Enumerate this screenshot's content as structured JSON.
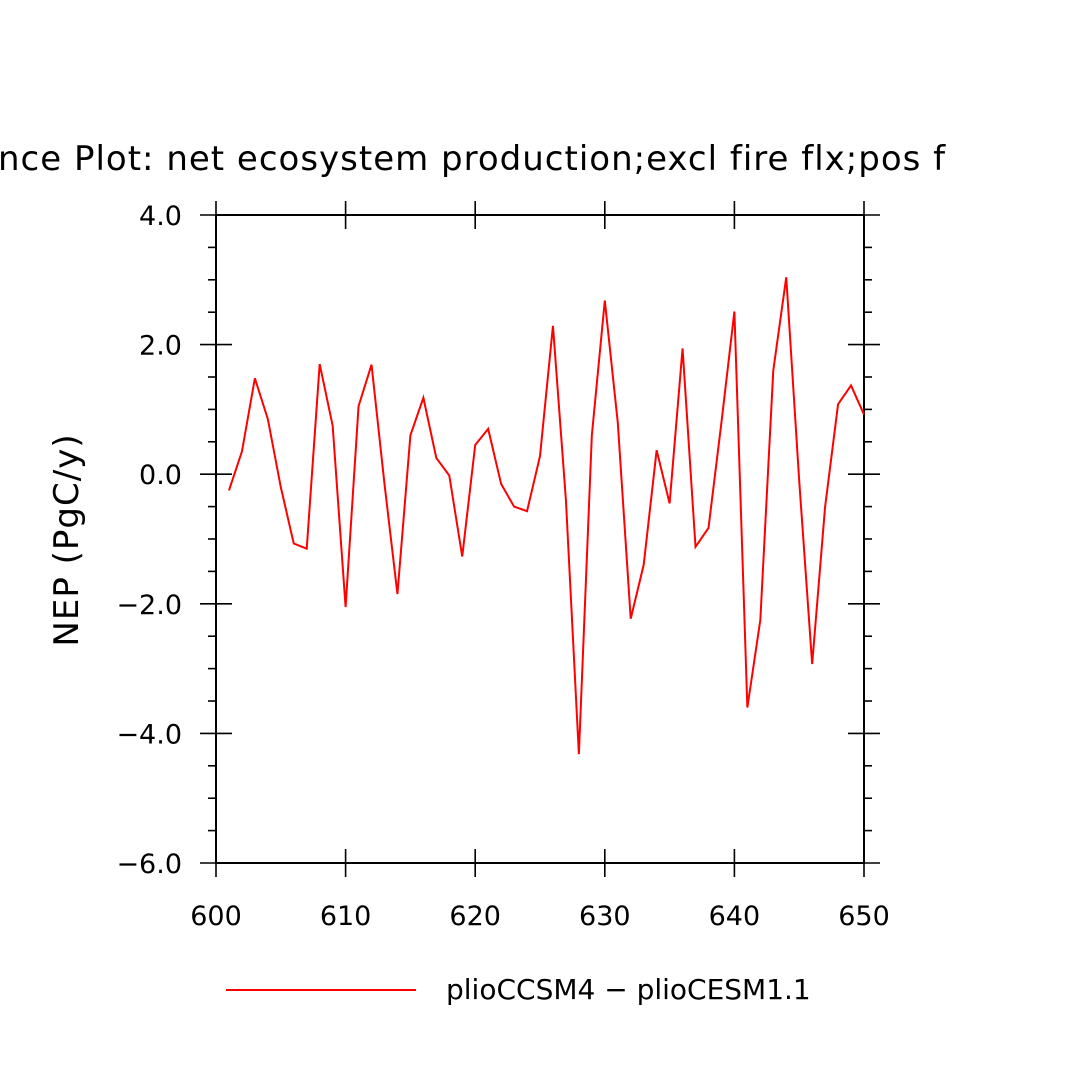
{
  "chart_data": {
    "type": "line",
    "title": "nce Plot: net ecosystem production;excl fire flx;pos f",
    "xlabel": "",
    "ylabel": "NEP  (PgC/y)",
    "xlim": [
      600,
      650
    ],
    "ylim": [
      -6,
      4
    ],
    "x_ticks": [
      600,
      610,
      620,
      630,
      640,
      650
    ],
    "x_tick_labels": [
      "600",
      "610",
      "620",
      "630",
      "640",
      "650"
    ],
    "y_ticks": [
      4,
      2,
      0,
      -2,
      -4,
      -6
    ],
    "y_tick_labels": [
      "4.0",
      "2.0",
      "0.0",
      "−2.0",
      "−4.0",
      "−6.0"
    ],
    "legend_position": "bottom",
    "series": [
      {
        "name": "plioCCSM4 − plioCESM1.1",
        "color": "#ff0000",
        "x": [
          601,
          602,
          603,
          604,
          605,
          606,
          607,
          608,
          609,
          610,
          611,
          612,
          613,
          614,
          615,
          616,
          617,
          618,
          619,
          620,
          621,
          622,
          623,
          624,
          625,
          626,
          627,
          628,
          629,
          630,
          631,
          632,
          633,
          634,
          635,
          636,
          637,
          638,
          639,
          640,
          641,
          642,
          643,
          644,
          645,
          646,
          647,
          648,
          649,
          650
        ],
        "values": [
          -0.25,
          0.35,
          1.48,
          0.85,
          -0.2,
          -1.07,
          -1.15,
          1.7,
          0.75,
          -2.05,
          1.05,
          1.69,
          -0.15,
          -1.85,
          0.6,
          1.18,
          0.25,
          -0.02,
          -1.27,
          0.45,
          0.7,
          -0.15,
          -0.5,
          -0.57,
          0.28,
          2.29,
          -0.4,
          -4.32,
          0.6,
          2.68,
          0.8,
          -2.23,
          -1.4,
          0.37,
          -0.45,
          1.94,
          -1.12,
          -0.83,
          0.8,
          2.51,
          -3.6,
          -2.25,
          1.6,
          3.04,
          -0.1,
          -2.93,
          -0.5,
          1.08,
          1.37,
          0.92
        ]
      }
    ]
  }
}
